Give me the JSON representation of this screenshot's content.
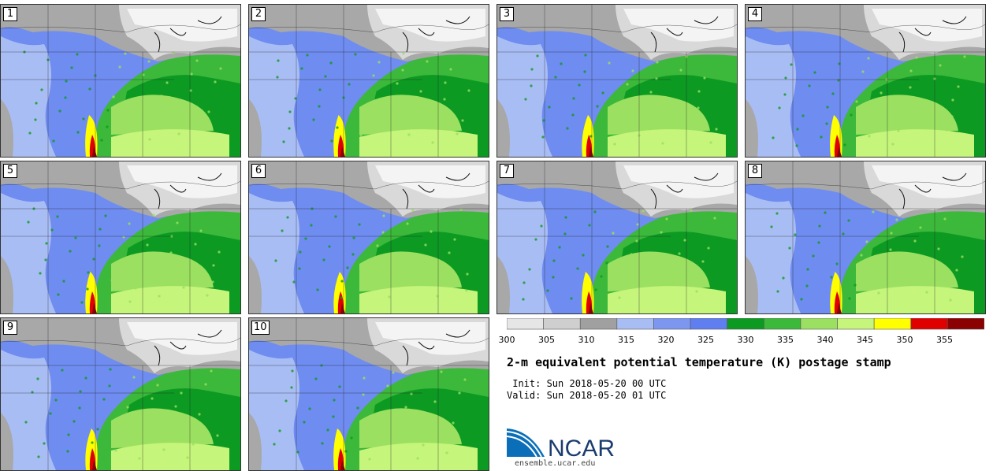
{
  "panels": [
    {
      "label": "1"
    },
    {
      "label": "2"
    },
    {
      "label": "3"
    },
    {
      "label": "4"
    },
    {
      "label": "5"
    },
    {
      "label": "6"
    },
    {
      "label": "7"
    },
    {
      "label": "8"
    },
    {
      "label": "9"
    },
    {
      "label": "10"
    }
  ],
  "colorbar": {
    "ticks": [
      "300",
      "305",
      "310",
      "315",
      "320",
      "325",
      "330",
      "335",
      "340",
      "345",
      "350",
      "355"
    ],
    "colors": [
      "#e6e6e6",
      "#cfcfcf",
      "#a0a0a0",
      "#a9bdf5",
      "#7d97f0",
      "#5f7ff0",
      "#0c9a22",
      "#3cb83a",
      "#9be060",
      "#c5f57a",
      "#ffff00",
      "#e10000",
      "#8b0000"
    ]
  },
  "map_colors": {
    "cold_gray": "#a8a8a8",
    "light_gray": "#d9d9d9",
    "pale_blue": "#a9bdf5",
    "blue": "#6f8cf0",
    "dark_green": "#0c9a22",
    "green": "#3cb83a",
    "light_green": "#9be060",
    "lime": "#c5f57a",
    "yellow": "#ffff00",
    "red": "#e10000",
    "dark_red": "#8b0000"
  },
  "title": "2-m equivalent potential temperature (K) postage stamp",
  "init": " Init: Sun 2018-05-20 00 UTC",
  "valid": "Valid: Sun 2018-05-20 01 UTC",
  "logo": {
    "text": "NCAR",
    "url": "ensemble.ucar.edu"
  }
}
